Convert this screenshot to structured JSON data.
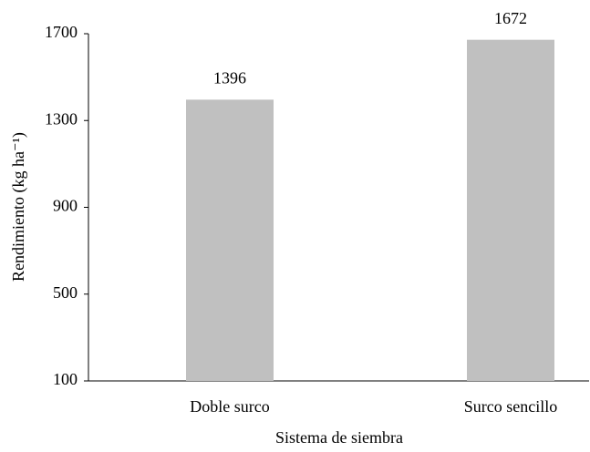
{
  "chart_data": {
    "type": "bar",
    "categories": [
      "Doble surco",
      "Surco sencillo"
    ],
    "values": [
      1396,
      1672
    ],
    "color": "#c0c0c0",
    "ylim": [
      100,
      1700
    ],
    "yticks": [
      100,
      500,
      900,
      1300,
      1700
    ],
    "x_label": "Sistema de siembra",
    "y_label": "Rendimiento (kg ha⁻¹)",
    "grid": false
  }
}
